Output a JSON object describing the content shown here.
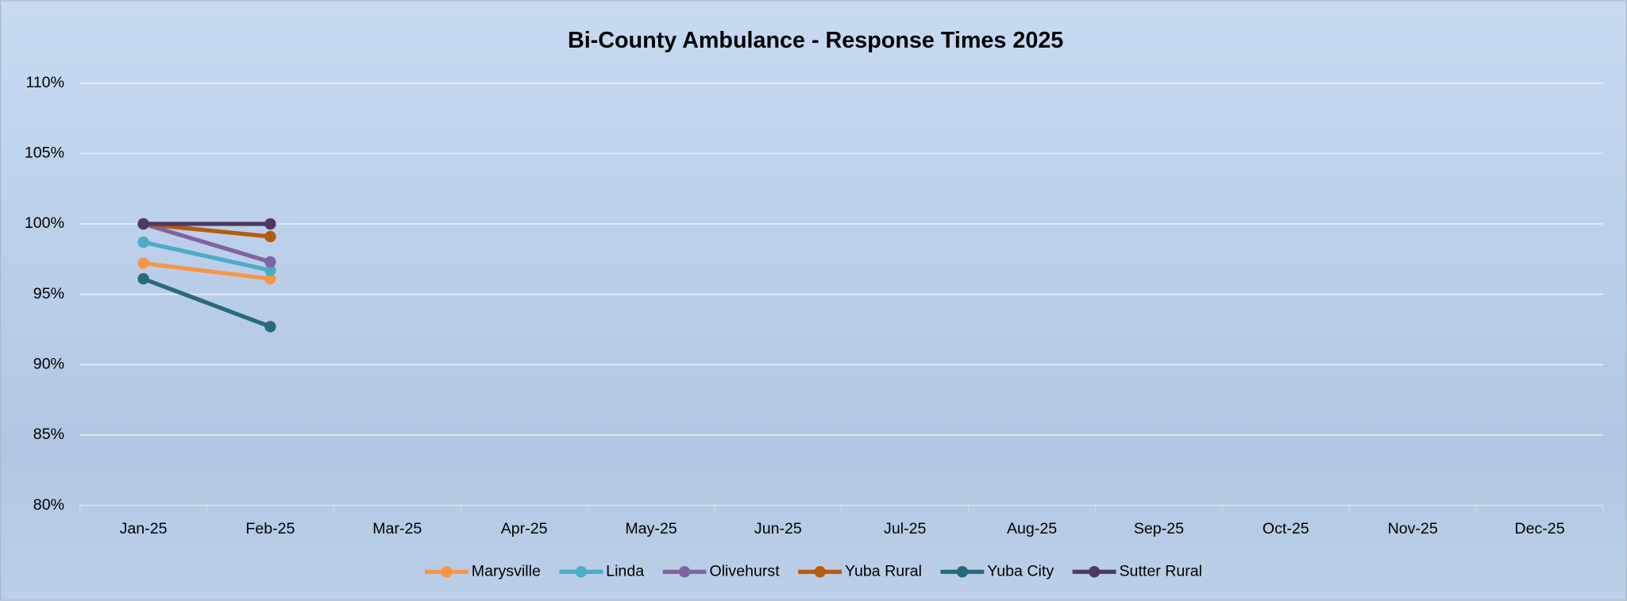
{
  "chart_data": {
    "type": "line",
    "title": "Bi-County Ambulance - Response Times 2025",
    "categories": [
      "Jan-25",
      "Feb-25",
      "Mar-25",
      "Apr-25",
      "May-25",
      "Jun-25",
      "Jul-25",
      "Aug-25",
      "Sep-25",
      "Oct-25",
      "Nov-25",
      "Dec-25"
    ],
    "series": [
      {
        "name": "Marysville",
        "color": "#f79646",
        "values": [
          97.2,
          96.1,
          null,
          null,
          null,
          null,
          null,
          null,
          null,
          null,
          null,
          null
        ]
      },
      {
        "name": "Linda",
        "color": "#4bacc6",
        "values": [
          98.7,
          96.7,
          null,
          null,
          null,
          null,
          null,
          null,
          null,
          null,
          null,
          null
        ]
      },
      {
        "name": "Olivehurst",
        "color": "#8064a2",
        "values": [
          100,
          97.3,
          null,
          null,
          null,
          null,
          null,
          null,
          null,
          null,
          null,
          null
        ]
      },
      {
        "name": "Yuba Rural",
        "color": "#b65a12",
        "values": [
          100,
          99.1,
          null,
          null,
          null,
          null,
          null,
          null,
          null,
          null,
          null,
          null
        ]
      },
      {
        "name": "Yuba City",
        "color": "#276a7c",
        "values": [
          96.1,
          92.7,
          null,
          null,
          null,
          null,
          null,
          null,
          null,
          null,
          null,
          null
        ]
      },
      {
        "name": "Sutter Rural",
        "color": "#4d3a64",
        "values": [
          100,
          100,
          null,
          null,
          null,
          null,
          null,
          null,
          null,
          null,
          null,
          null
        ]
      }
    ],
    "ylim": [
      80,
      110
    ],
    "yticks": [
      {
        "value": 80,
        "label": "80%"
      },
      {
        "value": 85,
        "label": "85%"
      },
      {
        "value": 90,
        "label": "90%"
      },
      {
        "value": 95,
        "label": "95%"
      },
      {
        "value": 100,
        "label": "100%"
      },
      {
        "value": 105,
        "label": "105%"
      },
      {
        "value": 110,
        "label": "110%"
      }
    ],
    "grid": true,
    "legend": "bottom"
  }
}
